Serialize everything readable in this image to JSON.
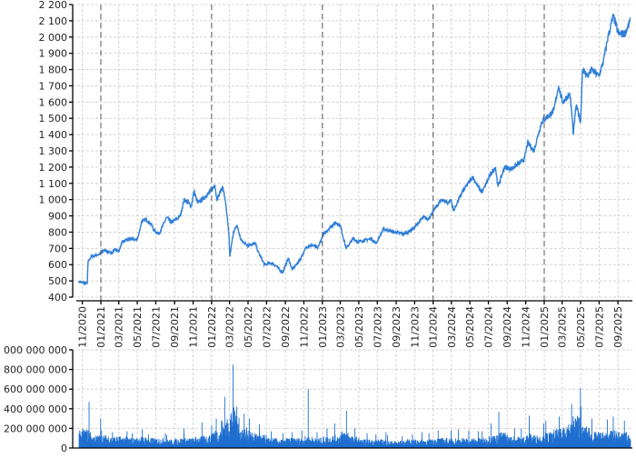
{
  "chart_data": [
    {
      "type": "line",
      "ylim": [
        400,
        2200
      ],
      "ytick_step": 100,
      "xlim": [
        "2020-10-20",
        "2025-10-11"
      ],
      "xtick_labels": [
        "11/2020",
        "01/2021",
        "03/2021",
        "05/2021",
        "07/2021",
        "09/2021",
        "11/2021",
        "01/2022",
        "03/2022",
        "05/2022",
        "07/2022",
        "09/2022",
        "11/2022",
        "01/2023",
        "03/2023",
        "05/2023",
        "07/2023",
        "09/2023",
        "11/2023",
        "01/2024",
        "03/2024",
        "05/2024",
        "07/2024",
        "09/2024",
        "11/2024",
        "01/2025",
        "03/2025",
        "05/2025",
        "07/2025",
        "09/2025"
      ],
      "year_markers": [
        "01/2021",
        "01/2022",
        "01/2023",
        "01/2024",
        "01/2025"
      ],
      "grid": true,
      "color": "#2f7fd8",
      "points": [
        [
          "2020-10-20",
          495
        ],
        [
          "2020-11-17",
          485
        ],
        [
          "2020-11-20",
          620
        ],
        [
          "2020-12-01",
          650
        ],
        [
          "2020-12-29",
          665
        ],
        [
          "2021-01-12",
          690
        ],
        [
          "2021-02-03",
          670
        ],
        [
          "2021-02-18",
          695
        ],
        [
          "2021-03-02",
          680
        ],
        [
          "2021-03-11",
          740
        ],
        [
          "2021-04-11",
          760
        ],
        [
          "2021-04-26",
          750
        ],
        [
          "2021-05-04",
          770
        ],
        [
          "2021-05-16",
          870
        ],
        [
          "2021-06-01",
          875
        ],
        [
          "2021-06-16",
          850
        ],
        [
          "2021-06-25",
          810
        ],
        [
          "2021-07-12",
          790
        ],
        [
          "2021-07-24",
          840
        ],
        [
          "2021-08-06",
          890
        ],
        [
          "2021-08-21",
          860
        ],
        [
          "2021-09-08",
          880
        ],
        [
          "2021-09-20",
          900
        ],
        [
          "2021-10-02",
          1000
        ],
        [
          "2021-10-11",
          990
        ],
        [
          "2021-10-26",
          960
        ],
        [
          "2021-11-04",
          1050
        ],
        [
          "2021-11-16",
          980
        ],
        [
          "2021-12-07",
          1010
        ],
        [
          "2021-12-28",
          1050
        ],
        [
          "2022-01-12",
          1090
        ],
        [
          "2022-01-18",
          1000
        ],
        [
          "2022-02-06",
          1080
        ],
        [
          "2022-02-15",
          1000
        ],
        [
          "2022-02-27",
          780
        ],
        [
          "2022-03-02",
          650
        ],
        [
          "2022-03-14",
          800
        ],
        [
          "2022-03-26",
          840
        ],
        [
          "2022-04-08",
          750
        ],
        [
          "2022-04-29",
          720
        ],
        [
          "2022-05-25",
          730
        ],
        [
          "2022-06-03",
          680
        ],
        [
          "2022-06-24",
          600
        ],
        [
          "2022-07-18",
          610
        ],
        [
          "2022-08-03",
          590
        ],
        [
          "2022-08-23",
          550
        ],
        [
          "2022-09-11",
          640
        ],
        [
          "2022-09-23",
          570
        ],
        [
          "2022-10-16",
          620
        ],
        [
          "2022-11-10",
          710
        ],
        [
          "2022-12-01",
          720
        ],
        [
          "2022-12-16",
          700
        ],
        [
          "2023-01-03",
          780
        ],
        [
          "2023-01-21",
          820
        ],
        [
          "2023-02-14",
          860
        ],
        [
          "2023-03-01",
          840
        ],
        [
          "2023-03-20",
          700
        ],
        [
          "2023-04-13",
          760
        ],
        [
          "2023-04-28",
          740
        ],
        [
          "2023-06-12",
          760
        ],
        [
          "2023-06-27",
          730
        ],
        [
          "2023-07-21",
          820
        ],
        [
          "2023-08-26",
          800
        ],
        [
          "2023-09-26",
          790
        ],
        [
          "2023-10-10",
          800
        ],
        [
          "2023-11-01",
          830
        ],
        [
          "2023-11-28",
          890
        ],
        [
          "2023-12-16",
          880
        ],
        [
          "2024-01-09",
          950
        ],
        [
          "2024-01-30",
          1000
        ],
        [
          "2024-02-20",
          980
        ],
        [
          "2024-02-29",
          1000
        ],
        [
          "2024-03-08",
          930
        ],
        [
          "2024-04-07",
          1050
        ],
        [
          "2024-04-25",
          1100
        ],
        [
          "2024-05-10",
          1140
        ],
        [
          "2024-06-03",
          1060
        ],
        [
          "2024-06-12",
          1050
        ],
        [
          "2024-07-06",
          1150
        ],
        [
          "2024-07-24",
          1200
        ],
        [
          "2024-08-02",
          1080
        ],
        [
          "2024-08-23",
          1200
        ],
        [
          "2024-09-14",
          1190
        ],
        [
          "2024-10-16",
          1230
        ],
        [
          "2024-10-28",
          1250
        ],
        [
          "2024-11-07",
          1350
        ],
        [
          "2024-11-28",
          1300
        ],
        [
          "2024-12-12",
          1400
        ],
        [
          "2024-12-24",
          1480
        ],
        [
          "2025-01-18",
          1520
        ],
        [
          "2025-02-02",
          1550
        ],
        [
          "2025-02-17",
          1700
        ],
        [
          "2025-03-02",
          1600
        ],
        [
          "2025-03-26",
          1650
        ],
        [
          "2025-04-01",
          1550
        ],
        [
          "2025-04-07",
          1400
        ],
        [
          "2025-04-16",
          1580
        ],
        [
          "2025-05-01",
          1480
        ],
        [
          "2025-05-07",
          1800
        ],
        [
          "2025-05-25",
          1760
        ],
        [
          "2025-06-06",
          1800
        ],
        [
          "2025-06-30",
          1760
        ],
        [
          "2025-07-15",
          1850
        ],
        [
          "2025-07-30",
          2000
        ],
        [
          "2025-08-17",
          2130
        ],
        [
          "2025-09-02",
          2020
        ],
        [
          "2025-09-23",
          2020
        ],
        [
          "2025-10-08",
          2080
        ],
        [
          "2025-10-11",
          2120
        ]
      ]
    },
    {
      "type": "bar",
      "ylim": [
        0,
        1000000000
      ],
      "ytick_step": 200000000,
      "grid": true,
      "color": "#1f6fd0",
      "monthly_volume": [
        [
          "2020-10",
          120,
          200
        ],
        [
          "2020-11",
          130,
          470
        ],
        [
          "2020-12",
          90,
          300
        ],
        [
          "2021-01",
          90,
          180
        ],
        [
          "2021-02",
          80,
          160
        ],
        [
          "2021-03",
          80,
          170
        ],
        [
          "2021-04",
          70,
          150
        ],
        [
          "2021-05",
          80,
          190
        ],
        [
          "2021-06",
          70,
          140
        ],
        [
          "2021-07",
          70,
          150
        ],
        [
          "2021-08",
          60,
          130
        ],
        [
          "2021-09",
          70,
          200
        ],
        [
          "2021-10",
          70,
          150
        ],
        [
          "2021-11",
          80,
          260
        ],
        [
          "2021-12",
          90,
          230
        ],
        [
          "2022-01",
          130,
          300
        ],
        [
          "2022-02",
          200,
          520
        ],
        [
          "2022-03",
          280,
          850
        ],
        [
          "2022-04",
          140,
          350
        ],
        [
          "2022-05",
          110,
          300
        ],
        [
          "2022-06",
          90,
          240
        ],
        [
          "2022-07",
          70,
          170
        ],
        [
          "2022-08",
          60,
          150
        ],
        [
          "2022-09",
          70,
          160
        ],
        [
          "2022-10",
          70,
          180
        ],
        [
          "2022-11",
          80,
          600
        ],
        [
          "2022-12",
          70,
          160
        ],
        [
          "2023-01",
          80,
          200
        ],
        [
          "2023-02",
          90,
          250
        ],
        [
          "2023-03",
          120,
          380
        ],
        [
          "2023-04",
          80,
          200
        ],
        [
          "2023-05",
          60,
          150
        ],
        [
          "2023-06",
          60,
          140
        ],
        [
          "2023-07",
          60,
          160
        ],
        [
          "2023-08",
          50,
          130
        ],
        [
          "2023-09",
          50,
          120
        ],
        [
          "2023-10",
          60,
          140
        ],
        [
          "2023-11",
          60,
          160
        ],
        [
          "2023-12",
          60,
          150
        ],
        [
          "2024-01",
          70,
          180
        ],
        [
          "2024-02",
          70,
          180
        ],
        [
          "2024-03",
          70,
          190
        ],
        [
          "2024-04",
          70,
          180
        ],
        [
          "2024-05",
          70,
          170
        ],
        [
          "2024-06",
          70,
          170
        ],
        [
          "2024-07",
          90,
          250
        ],
        [
          "2024-08",
          110,
          370
        ],
        [
          "2024-09",
          80,
          200
        ],
        [
          "2024-10",
          80,
          200
        ],
        [
          "2024-11",
          100,
          330
        ],
        [
          "2024-12",
          90,
          250
        ],
        [
          "2025-01",
          110,
          280
        ],
        [
          "2025-02",
          130,
          320
        ],
        [
          "2025-03",
          180,
          450
        ],
        [
          "2025-04",
          230,
          610
        ],
        [
          "2025-05",
          150,
          420
        ],
        [
          "2025-06",
          110,
          300
        ],
        [
          "2025-07",
          110,
          290
        ],
        [
          "2025-08",
          120,
          320
        ],
        [
          "2025-09",
          110,
          280
        ],
        [
          "2025-10",
          100,
          250
        ]
      ]
    }
  ]
}
